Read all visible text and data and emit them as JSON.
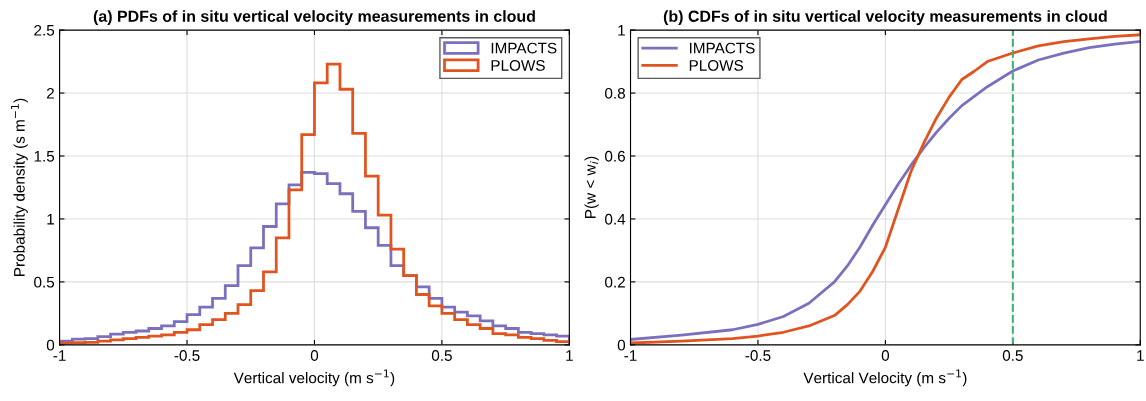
{
  "chart_data": [
    {
      "type": "histogram",
      "title": "(a) PDFs of in situ vertical velocity measurements in cloud",
      "xlabel": "Vertical velocity (m s$^{−1}$)",
      "ylabel": "Probability density (s m$^{−1}$)",
      "bins": [
        -1,
        -0.95,
        -0.9,
        -0.85,
        -0.8,
        -0.75,
        -0.7,
        -0.65,
        -0.6,
        -0.55,
        -0.5,
        -0.45,
        -0.4,
        -0.35,
        -0.3,
        -0.25,
        -0.2,
        -0.15,
        -0.1,
        -0.05,
        0,
        0.05,
        0.1,
        0.15,
        0.2,
        0.25,
        0.3,
        0.35,
        0.4,
        0.45,
        0.5,
        0.55,
        0.6,
        0.65,
        0.7,
        0.75,
        0.8,
        0.85,
        0.9,
        0.95,
        1
      ],
      "series": [
        {
          "name": "IMPACTS",
          "color": "#7b70bd",
          "values": [
            0.03,
            0.045,
            0.05,
            0.065,
            0.085,
            0.1,
            0.11,
            0.13,
            0.15,
            0.185,
            0.24,
            0.3,
            0.37,
            0.47,
            0.63,
            0.77,
            0.94,
            1.12,
            1.27,
            1.37,
            1.36,
            1.28,
            1.2,
            1.06,
            0.93,
            0.79,
            0.63,
            0.55,
            0.46,
            0.37,
            0.3,
            0.26,
            0.23,
            0.19,
            0.15,
            0.13,
            0.1,
            0.09,
            0.08,
            0.07
          ]
        },
        {
          "name": "PLOWS",
          "color": "#e0541f",
          "values": [
            0.013,
            0.018,
            0.02,
            0.03,
            0.04,
            0.05,
            0.06,
            0.07,
            0.08,
            0.1,
            0.12,
            0.16,
            0.2,
            0.25,
            0.32,
            0.43,
            0.58,
            0.85,
            1.23,
            1.67,
            2.08,
            2.23,
            2.03,
            1.68,
            1.34,
            1.03,
            0.76,
            0.55,
            0.4,
            0.31,
            0.25,
            0.2,
            0.16,
            0.13,
            0.09,
            0.08,
            0.06,
            0.05,
            0.035,
            0.026
          ]
        }
      ],
      "xlim": [
        -1,
        1
      ],
      "xticks": [
        -1,
        -0.5,
        0,
        0.5,
        1
      ],
      "ylim": [
        0,
        2.5
      ],
      "yticks": [
        0,
        0.5,
        1,
        1.5,
        2,
        2.5
      ],
      "grid": true,
      "legend": "top right"
    },
    {
      "type": "line",
      "title": "(b) CDFs of in situ vertical velocity measurements in cloud",
      "xlabel": "Vertical Velocity (m s$^{−1}$)",
      "ylabel": "P(w < w$_{i}$)",
      "series": [
        {
          "name": "IMPACTS",
          "color": "#7b70bd",
          "x": [
            -1,
            -0.8,
            -0.6,
            -0.5,
            -0.4,
            -0.3,
            -0.2,
            -0.15,
            -0.1,
            -0.05,
            0,
            0.05,
            0.1,
            0.15,
            0.2,
            0.25,
            0.3,
            0.4,
            0.5,
            0.6,
            0.7,
            0.8,
            0.9,
            1
          ],
          "values": [
            0.017,
            0.031,
            0.048,
            0.065,
            0.09,
            0.132,
            0.2,
            0.25,
            0.31,
            0.38,
            0.445,
            0.51,
            0.57,
            0.625,
            0.675,
            0.72,
            0.76,
            0.82,
            0.87,
            0.905,
            0.927,
            0.944,
            0.955,
            0.964
          ]
        },
        {
          "name": "PLOWS",
          "color": "#e0541f",
          "x": [
            -1,
            -0.8,
            -0.6,
            -0.5,
            -0.4,
            -0.3,
            -0.2,
            -0.15,
            -0.1,
            -0.05,
            0,
            0.05,
            0.1,
            0.15,
            0.2,
            0.25,
            0.3,
            0.35,
            0.4,
            0.5,
            0.6,
            0.7,
            0.8,
            0.9,
            1
          ],
          "values": [
            0.006,
            0.012,
            0.02,
            0.028,
            0.04,
            0.06,
            0.093,
            0.127,
            0.17,
            0.233,
            0.31,
            0.43,
            0.55,
            0.64,
            0.72,
            0.787,
            0.843,
            0.87,
            0.9,
            0.927,
            0.95,
            0.963,
            0.972,
            0.98,
            0.985
          ]
        }
      ],
      "ref_lines": [
        {
          "axis": "x",
          "value": 0.5,
          "color": "#3cb371",
          "line_style": "dashed"
        }
      ],
      "xlim": [
        -1,
        1
      ],
      "xticks": [
        -1,
        -0.5,
        0,
        0.5,
        1
      ],
      "ylim": [
        0,
        1
      ],
      "yticks": [
        0,
        0.2,
        0.4,
        0.6,
        0.8,
        1
      ],
      "grid": true,
      "legend": "top left",
      "marker": "none",
      "line_style": "solid"
    }
  ]
}
